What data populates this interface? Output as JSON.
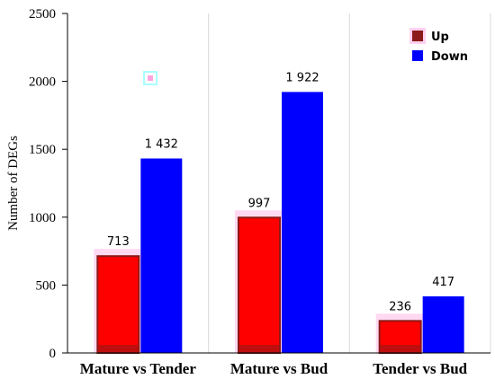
{
  "chart_data": {
    "type": "bar",
    "categories": [
      "Mature vs Tender",
      "Mature vs Bud",
      "Tender vs Bud"
    ],
    "series": [
      {
        "name": "Up",
        "values": [
          713,
          997,
          236
        ],
        "labels": [
          "713",
          "997",
          "236"
        ],
        "color": "#ff0000"
      },
      {
        "name": "Down",
        "values": [
          1432,
          1922,
          417
        ],
        "labels": [
          "1 432",
          "1 922",
          "417"
        ],
        "color": "#0000ff"
      }
    ],
    "ylabel": "Number of DEGs",
    "xlabel": "",
    "ylim": [
      0,
      2500
    ],
    "yticks": [
      "0",
      "500",
      "1000",
      "1500",
      "2000",
      "2500"
    ],
    "grid": "vertical",
    "legend_position": "top-right",
    "colors": {
      "up_border": "#8b1a1a",
      "accent_highlight": "#ff66cc"
    }
  }
}
